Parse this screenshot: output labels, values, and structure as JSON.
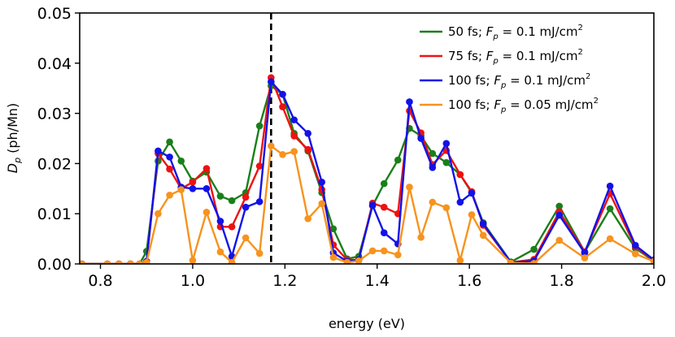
{
  "chart_data": {
    "type": "line",
    "title": "",
    "xlabel": "energy (eV)",
    "ylabel": "D_p (ph/Mn)",
    "xlim": [
      0.755,
      2.0
    ],
    "ylim": [
      0.0,
      0.05
    ],
    "x_ticks": [
      0.8,
      1.0,
      1.2,
      1.4,
      1.6,
      1.8,
      2.0
    ],
    "x_tick_labels": [
      "0.8",
      "1.0",
      "1.2",
      "1.4",
      "1.6",
      "1.8",
      "2.0"
    ],
    "y_ticks": [
      0.0,
      0.01,
      0.02,
      0.03,
      0.04,
      0.05
    ],
    "y_tick_labels": [
      "0.00",
      "0.01",
      "0.02",
      "0.03",
      "0.04",
      "0.05"
    ],
    "vline": {
      "x": 1.17,
      "style": "dashed",
      "color": "#000000"
    },
    "grid": false,
    "legend_position": "top-right",
    "series": [
      {
        "name": "50 fs; F_p = 0.1 mJ/cm^2",
        "legend": {
          "prefix": "50 fs; ",
          "var": "F",
          "sub": "p",
          "mid": " = 0.1 mJ/cm",
          "sup": "2"
        },
        "color": "#1a7f1a",
        "x": [
          0.76,
          0.815,
          0.84,
          0.865,
          0.885,
          0.9,
          0.925,
          0.95,
          0.975,
          1.0,
          1.03,
          1.06,
          1.085,
          1.115,
          1.145,
          1.17,
          1.195,
          1.22,
          1.25,
          1.28,
          1.305,
          1.335,
          1.36,
          1.39,
          1.415,
          1.445,
          1.47,
          1.495,
          1.52,
          1.55,
          1.58,
          1.605,
          1.63,
          1.69,
          1.74,
          1.795,
          1.85,
          1.905,
          1.96,
          2.0
        ],
        "y": [
          0.0,
          0.0,
          0.0,
          0.0,
          0.0,
          0.0025,
          0.0205,
          0.0243,
          0.0205,
          0.0165,
          0.0183,
          0.0135,
          0.0126,
          0.0142,
          0.0275,
          0.0355,
          0.0338,
          0.026,
          0.0225,
          0.0142,
          0.007,
          0.001,
          0.0015,
          0.0116,
          0.016,
          0.0207,
          0.027,
          0.0255,
          0.022,
          0.0202,
          0.0178,
          0.0142,
          0.0082,
          0.0004,
          0.0029,
          0.0115,
          0.0024,
          0.011,
          0.0031,
          0.0006
        ]
      },
      {
        "name": "75 fs; F_p = 0.1 mJ/cm^2",
        "legend": {
          "prefix": "75 fs; ",
          "var": "F",
          "sub": "p",
          "mid": " = 0.1 mJ/cm",
          "sup": "2"
        },
        "color": "#ee1111",
        "x": [
          0.76,
          0.815,
          0.84,
          0.865,
          0.885,
          0.9,
          0.925,
          0.95,
          0.975,
          1.0,
          1.03,
          1.06,
          1.085,
          1.115,
          1.145,
          1.17,
          1.195,
          1.22,
          1.25,
          1.28,
          1.305,
          1.335,
          1.36,
          1.39,
          1.415,
          1.445,
          1.47,
          1.495,
          1.52,
          1.55,
          1.58,
          1.605,
          1.63,
          1.69,
          1.74,
          1.795,
          1.85,
          1.905,
          1.96,
          2.0
        ],
        "y": [
          0.0,
          0.0,
          0.0,
          0.0,
          0.0,
          0.0005,
          0.022,
          0.0189,
          0.015,
          0.0163,
          0.019,
          0.0074,
          0.0074,
          0.0133,
          0.0195,
          0.0371,
          0.0313,
          0.0255,
          0.0228,
          0.0148,
          0.0038,
          0.0008,
          0.0008,
          0.0121,
          0.0113,
          0.01,
          0.0305,
          0.0261,
          0.0198,
          0.0226,
          0.0178,
          0.0144,
          0.0077,
          0.0003,
          0.0009,
          0.0104,
          0.0024,
          0.014,
          0.0034,
          0.0007
        ]
      },
      {
        "name": "100 fs; F_p = 0.1 mJ/cm^2",
        "legend": {
          "prefix": "100 fs; ",
          "var": "F",
          "sub": "p",
          "mid": " = 0.1 mJ/cm",
          "sup": "2"
        },
        "color": "#1212e8",
        "x": [
          0.76,
          0.815,
          0.84,
          0.865,
          0.885,
          0.9,
          0.925,
          0.95,
          0.975,
          1.0,
          1.03,
          1.06,
          1.085,
          1.115,
          1.145,
          1.17,
          1.195,
          1.22,
          1.25,
          1.28,
          1.305,
          1.335,
          1.36,
          1.39,
          1.415,
          1.445,
          1.47,
          1.495,
          1.52,
          1.55,
          1.58,
          1.605,
          1.63,
          1.69,
          1.74,
          1.795,
          1.85,
          1.905,
          1.96,
          2.0
        ],
        "y": [
          0.0,
          0.0,
          0.0,
          0.0,
          0.0,
          0.0005,
          0.0225,
          0.0213,
          0.0153,
          0.015,
          0.015,
          0.0085,
          0.0015,
          0.0113,
          0.0124,
          0.0363,
          0.0338,
          0.0287,
          0.026,
          0.0163,
          0.0022,
          0.0005,
          0.0008,
          0.0117,
          0.0062,
          0.004,
          0.0323,
          0.025,
          0.0192,
          0.024,
          0.0123,
          0.0141,
          0.008,
          0.0003,
          0.0006,
          0.0097,
          0.0022,
          0.0155,
          0.0037,
          0.0008
        ]
      },
      {
        "name": "100 fs; F_p = 0.05 mJ/cm^2",
        "legend": {
          "prefix": "100 fs; ",
          "var": "F",
          "sub": "p",
          "mid": " = 0.05 mJ/cm",
          "sup": "2"
        },
        "color": "#f7931e",
        "x": [
          0.76,
          0.815,
          0.84,
          0.865,
          0.885,
          0.9,
          0.925,
          0.95,
          0.975,
          1.0,
          1.03,
          1.06,
          1.085,
          1.115,
          1.145,
          1.17,
          1.195,
          1.22,
          1.25,
          1.28,
          1.305,
          1.335,
          1.36,
          1.39,
          1.415,
          1.445,
          1.47,
          1.495,
          1.52,
          1.55,
          1.58,
          1.605,
          1.63,
          1.69,
          1.74,
          1.795,
          1.85,
          1.905,
          1.96,
          2.0
        ],
        "y": [
          0.0,
          0.0,
          0.0,
          0.0,
          0.0,
          0.0003,
          0.01,
          0.0137,
          0.0148,
          0.0007,
          0.0103,
          0.0024,
          0.0003,
          0.0052,
          0.0021,
          0.0235,
          0.0218,
          0.0224,
          0.009,
          0.012,
          0.0013,
          0.0003,
          0.0006,
          0.0026,
          0.0026,
          0.0018,
          0.0153,
          0.0053,
          0.0123,
          0.0112,
          0.0007,
          0.0098,
          0.0057,
          0.0002,
          0.0001,
          0.0047,
          0.0012,
          0.005,
          0.002,
          0.0005
        ]
      }
    ]
  }
}
